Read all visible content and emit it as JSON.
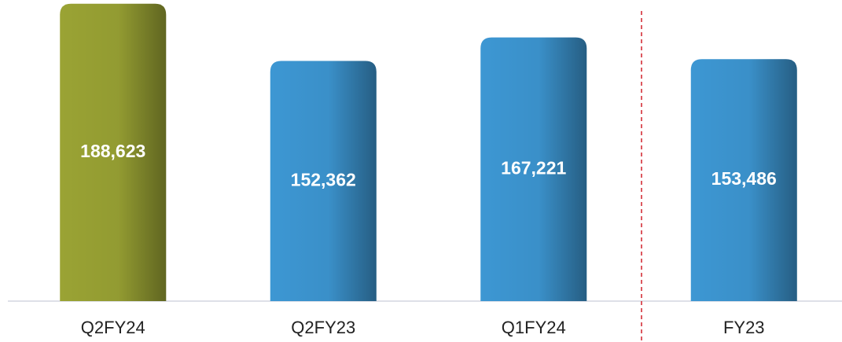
{
  "chart_data": {
    "type": "bar",
    "categories": [
      "Q2FY24",
      "Q2FY23",
      "Q1FY24",
      "FY23"
    ],
    "values": [
      188623,
      152362,
      167221,
      153486
    ],
    "value_labels": [
      "188,623",
      "152,362",
      "167,221",
      "153,486"
    ],
    "colors": [
      "#9aa334",
      "#3d97d3",
      "#3d97d3",
      "#3d97d3"
    ],
    "ylim": [
      0,
      190000
    ]
  }
}
